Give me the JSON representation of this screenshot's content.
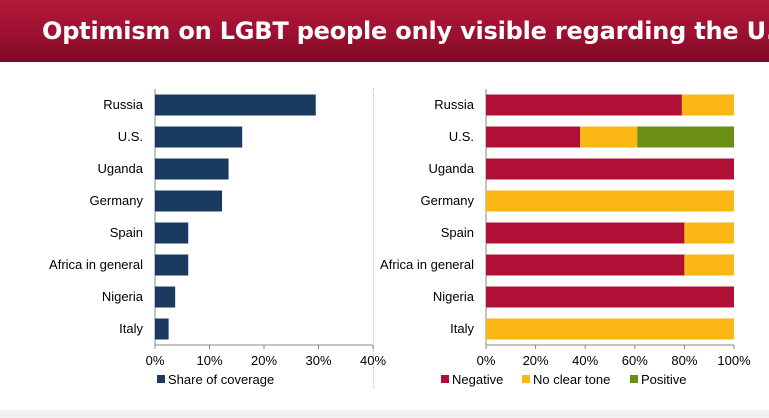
{
  "header": {
    "title": "Optimism on LGBT people only visible regarding the U.S."
  },
  "colors": {
    "share": "#1b3a60",
    "negative": "#b01035",
    "neutral": "#fbb714",
    "positive": "#6b8e14"
  },
  "chart_data": [
    {
      "type": "bar",
      "orientation": "horizontal",
      "categories": [
        "Russia",
        "U.S.",
        "Uganda",
        "Germany",
        "Spain",
        "Africa in general",
        "Nigeria",
        "Italy"
      ],
      "series": [
        {
          "name": "Share of coverage",
          "values": [
            29.5,
            16,
            13.5,
            12.3,
            6.1,
            6.1,
            3.7,
            2.5
          ]
        }
      ],
      "xlim": [
        0,
        40
      ],
      "ticks": [
        "0%",
        "10%",
        "20%",
        "30%",
        "40%"
      ],
      "legend": "bottom"
    },
    {
      "type": "bar",
      "orientation": "horizontal",
      "stacked": true,
      "percent": true,
      "categories": [
        "Russia",
        "U.S.",
        "Uganda",
        "Germany",
        "Spain",
        "Africa in general",
        "Nigeria",
        "Italy"
      ],
      "series": [
        {
          "name": "Negative",
          "values": [
            79,
            38,
            100,
            0,
            80,
            80,
            100,
            0
          ]
        },
        {
          "name": "No clear tone",
          "values": [
            21,
            23,
            0,
            100,
            20,
            20,
            0,
            100
          ]
        },
        {
          "name": "Positive",
          "values": [
            0,
            39,
            0,
            0,
            0,
            0,
            0,
            0
          ]
        }
      ],
      "xlim": [
        0,
        100
      ],
      "ticks": [
        "0%",
        "20%",
        "40%",
        "60%",
        "80%",
        "100%"
      ],
      "legend": "bottom"
    }
  ]
}
